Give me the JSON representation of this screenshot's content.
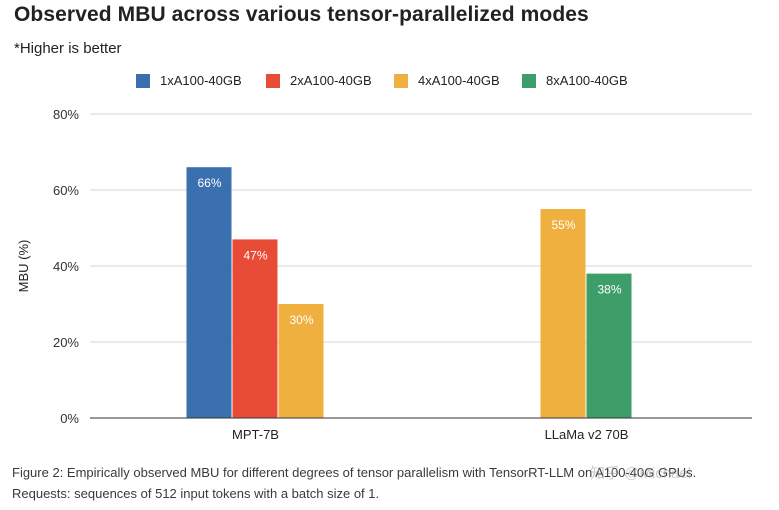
{
  "chart_data": {
    "type": "bar",
    "title": "Observed MBU across various tensor-parallelized modes",
    "subtitle": "*Higher is better",
    "xlabel": "",
    "ylabel": "MBU (%)",
    "ylim": [
      0,
      80
    ],
    "yticks": [
      "0%",
      "20%",
      "40%",
      "60%",
      "80%"
    ],
    "ytick_values": [
      0,
      20,
      40,
      60,
      80
    ],
    "grid": true,
    "legend_position": "top-center",
    "categories": [
      "MPT-7B",
      "LLaMa v2 70B"
    ],
    "series": [
      {
        "name": "1xA100-40GB",
        "color": "#3a6fb0",
        "values": [
          66,
          null
        ],
        "labels": [
          "66%",
          null
        ]
      },
      {
        "name": "2xA100-40GB",
        "color": "#e84c36",
        "values": [
          47,
          null
        ],
        "labels": [
          "47%",
          null
        ]
      },
      {
        "name": "4xA100-40GB",
        "color": "#f0b040",
        "values": [
          30,
          55
        ],
        "labels": [
          "30%",
          "55%"
        ]
      },
      {
        "name": "8xA100-40GB",
        "color": "#3e9e6a",
        "values": [
          null,
          38
        ],
        "labels": [
          null,
          "38%"
        ]
      }
    ]
  },
  "caption": {
    "line1": "Figure 2: Empirically observed MBU for different degrees of tensor parallelism with TensorRT-LLM on A100-40G GPUs.",
    "line2": "Requests: sequences of 512 input tokens with a batch size of 1."
  },
  "watermark": "知乎 @Michael"
}
